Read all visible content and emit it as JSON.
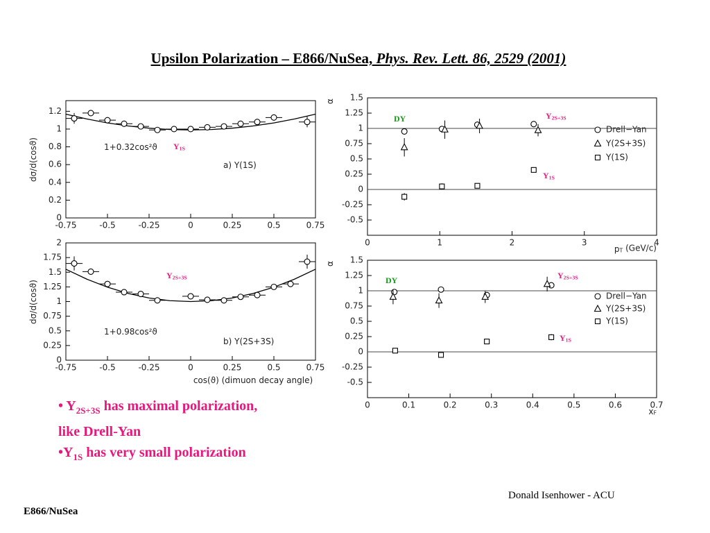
{
  "title": {
    "main": "Upsilon Polarization – E866/NuSea,",
    "citation": "Phys. Rev. Lett. 86,  2529 (2001)"
  },
  "chart_data": [
    {
      "type": "scatter",
      "y_label": {
        "text": "dσ/d(cosϑ)"
      },
      "xlim": [
        -0.75,
        0.75
      ],
      "ylim": [
        0,
        1.32
      ],
      "xticks": [
        -0.75,
        -0.5,
        -0.25,
        0,
        0.25,
        0.5,
        0.75
      ],
      "yticks": [
        0,
        0.2,
        0.4,
        0.6,
        0.8,
        1,
        1.2
      ],
      "series": [
        {
          "marker": "circle",
          "color": "#000000",
          "x": [
            -0.7,
            -0.6,
            -0.5,
            -0.4,
            -0.3,
            -0.2,
            -0.1,
            0,
            0.1,
            0.2,
            0.3,
            0.4,
            0.5,
            0.7
          ],
          "values": [
            1.12,
            1.18,
            1.1,
            1.06,
            1.03,
            0.99,
            1.0,
            1.0,
            1.02,
            1.03,
            1.06,
            1.08,
            1.13,
            1.08
          ],
          "errors": [
            0.06,
            0.03,
            0.02,
            0.02,
            0.02,
            0.02,
            0.02,
            0.02,
            0.02,
            0.02,
            0.02,
            0.02,
            0.02,
            0.06
          ],
          "x_errors": [
            0.05,
            0.05,
            0.05,
            0.05,
            0.05,
            0.05,
            0.05,
            0.05,
            0.05,
            0.05,
            0.05,
            0.05,
            0.05,
            0.05
          ]
        }
      ],
      "fit": {
        "color": "#000000",
        "x": [
          -0.75,
          -0.625,
          -0.5,
          -0.375,
          -0.25,
          -0.125,
          0,
          0.125,
          0.25,
          0.375,
          0.5,
          0.625,
          0.75
        ],
        "values": [
          1.168,
          1.114,
          1.069,
          1.035,
          1.01,
          0.995,
          0.99,
          0.995,
          1.01,
          1.035,
          1.069,
          1.114,
          1.168
        ]
      },
      "annotations": [
        {
          "text": "1+0.32cos²ϑ"
        },
        {
          "text": "Y",
          "sub": "1S",
          "color": "#e8177d"
        },
        {
          "text": "a) Υ(1S)"
        }
      ]
    },
    {
      "type": "scatter",
      "y_label": {
        "text": "dσ/d(cosϑ)"
      },
      "x_label": {
        "text": "cos(ϑ) (dimuon decay angle)"
      },
      "xlim": [
        -0.75,
        0.75
      ],
      "ylim": [
        0,
        2
      ],
      "xticks": [
        -0.75,
        -0.5,
        -0.25,
        0,
        0.25,
        0.5,
        0.75
      ],
      "yticks": [
        0,
        0.25,
        0.5,
        0.75,
        1,
        1.25,
        1.5,
        1.75,
        2
      ],
      "series": [
        {
          "marker": "circle",
          "color": "#000000",
          "x": [
            -0.7,
            -0.6,
            -0.5,
            -0.4,
            -0.3,
            -0.2,
            0,
            0.1,
            0.2,
            0.3,
            0.4,
            0.5,
            0.6,
            0.7
          ],
          "values": [
            1.65,
            1.51,
            1.3,
            1.16,
            1.13,
            1.02,
            1.09,
            1.03,
            1.02,
            1.08,
            1.11,
            1.25,
            1.3,
            1.68
          ],
          "errors": [
            0.12,
            0.05,
            0.04,
            0.03,
            0.03,
            0.03,
            0.03,
            0.03,
            0.03,
            0.03,
            0.03,
            0.04,
            0.05,
            0.12
          ],
          "x_errors": [
            0.05,
            0.05,
            0.05,
            0.05,
            0.05,
            0.05,
            0.05,
            0.05,
            0.05,
            0.05,
            0.05,
            0.05,
            0.05,
            0.05
          ]
        }
      ],
      "fit": {
        "color": "#000000",
        "x": [
          -0.75,
          -0.625,
          -0.5,
          -0.375,
          -0.25,
          -0.125,
          0,
          0.125,
          0.25,
          0.375,
          0.5,
          0.625,
          0.75
        ],
        "values": [
          1.551,
          1.383,
          1.245,
          1.138,
          1.061,
          1.015,
          1.0,
          1.015,
          1.061,
          1.138,
          1.245,
          1.383,
          1.551
        ]
      },
      "annotations": [
        {
          "text": "1+0.98cos²ϑ"
        },
        {
          "text": "Y",
          "sub": "2S+3S",
          "color": "#e8177d"
        },
        {
          "text": "b) Υ(2S+3S)"
        }
      ]
    },
    {
      "type": "scatter",
      "y_label": {
        "text": "α"
      },
      "x_label": {
        "text": "p",
        "sub": "T",
        "text2": " (GeV/c)"
      },
      "xlim": [
        0,
        4
      ],
      "ylim": [
        -0.75,
        1.5
      ],
      "xticks": [
        0,
        1,
        2,
        3,
        4
      ],
      "yticks": [
        -0.5,
        -0.25,
        0,
        0.25,
        0.5,
        0.75,
        1,
        1.25,
        1.5
      ],
      "hlines": [
        0,
        1
      ],
      "series": [
        {
          "name": "Drell−Yan",
          "marker": "circle",
          "color": "#000000",
          "x": [
            0.51,
            1.03,
            1.52,
            2.3
          ],
          "values": [
            0.95,
            0.99,
            1.06,
            1.07
          ],
          "errors": [
            0.02,
            0.02,
            0.02,
            0.02
          ]
        },
        {
          "name": "Υ(2S+3S)",
          "marker": "triangle",
          "color": "#000000",
          "x": [
            0.51,
            1.07,
            1.55,
            2.36
          ],
          "values": [
            0.69,
            0.98,
            1.04,
            0.97
          ],
          "errors": [
            0.15,
            0.15,
            0.12,
            0.1
          ]
        },
        {
          "name": "Υ(1S)",
          "marker": "square",
          "color": "#000000",
          "x": [
            0.51,
            1.03,
            1.52,
            2.3
          ],
          "values": [
            -0.12,
            0.05,
            0.06,
            0.32
          ],
          "errors": [
            0.06,
            0.05,
            0.04,
            0.04
          ]
        }
      ],
      "annotations": [
        {
          "text": "DY",
          "color": "#1a9a1a"
        },
        {
          "text": "Y",
          "sub": "2S+3S",
          "color": "#e8177d"
        },
        {
          "text": "Y",
          "sub": "1S",
          "color": "#e8177d"
        }
      ]
    },
    {
      "type": "scatter",
      "y_label": {
        "text": "α"
      },
      "x_label": {
        "text": "x",
        "sub": "F"
      },
      "xlim": [
        0,
        0.7
      ],
      "ylim": [
        -0.75,
        1.5
      ],
      "xticks": [
        0,
        0.1,
        0.2,
        0.3,
        0.4,
        0.5,
        0.6,
        0.7
      ],
      "yticks": [
        -0.5,
        -0.25,
        0,
        0.25,
        0.5,
        0.75,
        1,
        1.25,
        1.5
      ],
      "hlines": [
        0,
        1
      ],
      "series": [
        {
          "name": "Drell−Yan",
          "marker": "circle",
          "color": "#000000",
          "x": [
            0.065,
            0.178,
            0.289,
            0.445
          ],
          "values": [
            0.98,
            1.02,
            0.93,
            1.09
          ],
          "errors": [
            0.02,
            0.02,
            0.02,
            0.02
          ]
        },
        {
          "name": "Υ(2S+3S)",
          "marker": "triangle",
          "color": "#000000",
          "x": [
            0.062,
            0.173,
            0.285,
            0.435
          ],
          "values": [
            0.9,
            0.84,
            0.9,
            1.11
          ],
          "errors": [
            0.12,
            0.12,
            0.1,
            0.12
          ]
        },
        {
          "name": "Υ(1S)",
          "marker": "square",
          "color": "#000000",
          "x": [
            0.067,
            0.178,
            0.289,
            0.445
          ],
          "values": [
            0.02,
            -0.05,
            0.17,
            0.24
          ],
          "errors": [
            0.04,
            0.04,
            0.04,
            0.05
          ]
        }
      ],
      "annotations": [
        {
          "text": "DY",
          "color": "#1a9a1a"
        },
        {
          "text": "Y",
          "sub": "2S+3S",
          "color": "#e8177d"
        },
        {
          "text": "Y",
          "sub": "1S",
          "color": "#e8177d"
        }
      ]
    }
  ],
  "bullets": [
    {
      "text": "• Y",
      "sub": "2S+3S",
      "text2": " has maximal polarization,",
      "line2": "like Drell-Yan"
    },
    {
      "text": "•Y",
      "sub": "1S",
      "text2": " has very small polarization"
    }
  ],
  "footer": {
    "author": "Donald Isenhower - ACU",
    "experiment": "E866/NuSea"
  }
}
